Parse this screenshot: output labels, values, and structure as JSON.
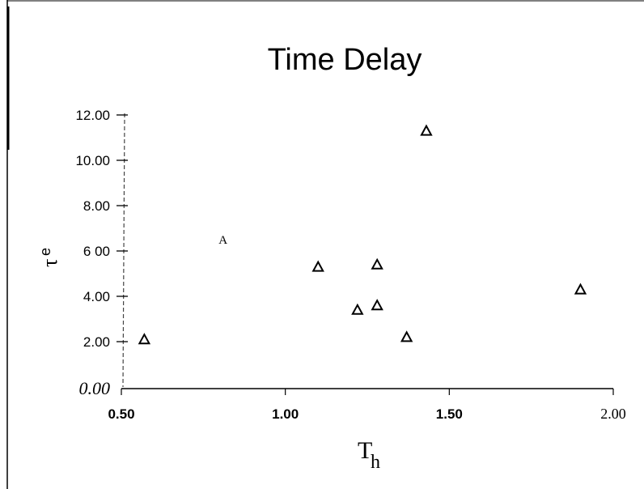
{
  "chart_data": {
    "type": "scatter",
    "title": "Time Delay",
    "xlabel": {
      "base": "T",
      "sub": "h"
    },
    "ylabel": {
      "base": "τ",
      "sub": "e"
    },
    "xlim": [
      0.5,
      2.0
    ],
    "ylim": [
      0.0,
      12.0
    ],
    "x_ticks": [
      {
        "value": 0.5,
        "label": "0.50"
      },
      {
        "value": 1.0,
        "label": "1.00"
      },
      {
        "value": 1.5,
        "label": "1.50"
      },
      {
        "value": 2.0,
        "label": "2.00"
      }
    ],
    "y_ticks": [
      {
        "value": 0.0,
        "label": "0.00"
      },
      {
        "value": 2.0,
        "label": "2.00"
      },
      {
        "value": 4.0,
        "label": "4.00"
      },
      {
        "value": 6.0,
        "label": "6 00"
      },
      {
        "value": 8.0,
        "label": "8.00"
      },
      {
        "value": 10.0,
        "label": "10.00"
      },
      {
        "value": 12.0,
        "label": "12.00"
      }
    ],
    "grid": false,
    "points": [
      {
        "x": 0.57,
        "y": 2.1,
        "marker": "triangle"
      },
      {
        "x": 0.81,
        "y": 6.5,
        "marker": "A"
      },
      {
        "x": 1.1,
        "y": 5.3,
        "marker": "triangle"
      },
      {
        "x": 1.22,
        "y": 3.4,
        "marker": "triangle"
      },
      {
        "x": 1.28,
        "y": 5.4,
        "marker": "triangle"
      },
      {
        "x": 1.28,
        "y": 3.6,
        "marker": "triangle"
      },
      {
        "x": 1.37,
        "y": 2.2,
        "marker": "triangle"
      },
      {
        "x": 1.43,
        "y": 11.3,
        "marker": "triangle"
      },
      {
        "x": 1.9,
        "y": 4.3,
        "marker": "triangle"
      }
    ]
  }
}
